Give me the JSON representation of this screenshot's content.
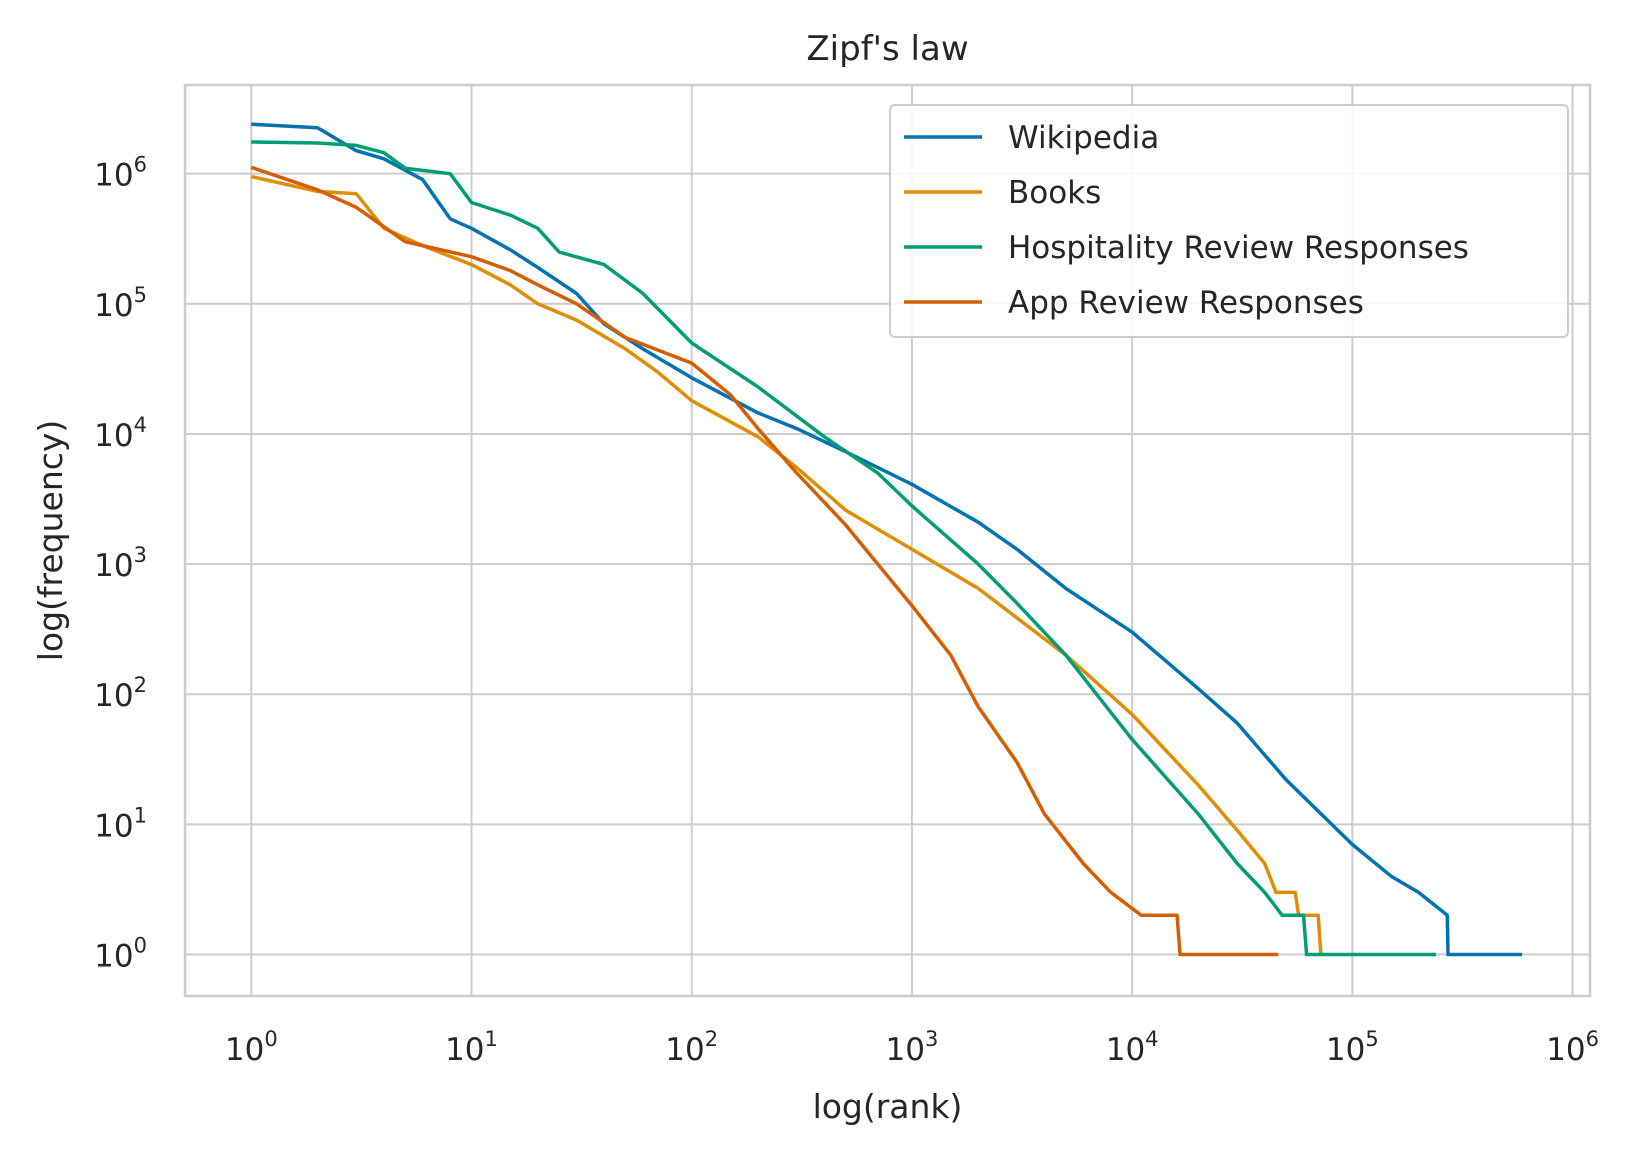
{
  "chart_data": {
    "type": "line",
    "title": "Zipf's law",
    "xlabel": "log(rank)",
    "ylabel": "log(frequency)",
    "x_scale": "log",
    "y_scale": "log",
    "xlim": [
      0.5,
      1200000
    ],
    "ylim": [
      0.48,
      4800000
    ],
    "grid": true,
    "legend_position": "top-right",
    "x_ticks": [
      {
        "base": "10",
        "exp": "0",
        "value": 1
      },
      {
        "base": "10",
        "exp": "1",
        "value": 10
      },
      {
        "base": "10",
        "exp": "2",
        "value": 100
      },
      {
        "base": "10",
        "exp": "3",
        "value": 1000
      },
      {
        "base": "10",
        "exp": "4",
        "value": 10000
      },
      {
        "base": "10",
        "exp": "5",
        "value": 100000
      },
      {
        "base": "10",
        "exp": "6",
        "value": 1000000
      }
    ],
    "y_ticks": [
      {
        "base": "10",
        "exp": "0",
        "value": 1
      },
      {
        "base": "10",
        "exp": "1",
        "value": 10
      },
      {
        "base": "10",
        "exp": "2",
        "value": 100
      },
      {
        "base": "10",
        "exp": "3",
        "value": 1000
      },
      {
        "base": "10",
        "exp": "4",
        "value": 10000
      },
      {
        "base": "10",
        "exp": "5",
        "value": 100000
      },
      {
        "base": "10",
        "exp": "6",
        "value": 1000000
      }
    ],
    "series": [
      {
        "name": "Wikipedia",
        "color": "#0173b2",
        "points": [
          [
            1,
            2400000
          ],
          [
            2,
            2250000
          ],
          [
            3,
            1500000
          ],
          [
            4,
            1300000
          ],
          [
            6,
            900000
          ],
          [
            8,
            450000
          ],
          [
            10,
            380000
          ],
          [
            15,
            260000
          ],
          [
            20,
            190000
          ],
          [
            30,
            120000
          ],
          [
            40,
            70000
          ],
          [
            60,
            45000
          ],
          [
            100,
            27000
          ],
          [
            200,
            14500
          ],
          [
            300,
            11000
          ],
          [
            500,
            7300
          ],
          [
            1000,
            4100
          ],
          [
            2000,
            2100
          ],
          [
            3000,
            1300
          ],
          [
            5000,
            650
          ],
          [
            10000,
            300
          ],
          [
            20000,
            110
          ],
          [
            30000,
            60
          ],
          [
            50000,
            22
          ],
          [
            100000,
            7
          ],
          [
            150000,
            4
          ],
          [
            200000,
            3
          ],
          [
            270000,
            2
          ],
          [
            272000,
            1
          ],
          [
            590000,
            1
          ]
        ]
      },
      {
        "name": "Books",
        "color": "#de8f05",
        "points": [
          [
            1,
            950000
          ],
          [
            2,
            730000
          ],
          [
            3,
            700000
          ],
          [
            4,
            380000
          ],
          [
            6,
            280000
          ],
          [
            10,
            200000
          ],
          [
            15,
            140000
          ],
          [
            20,
            100000
          ],
          [
            30,
            75000
          ],
          [
            50,
            45000
          ],
          [
            70,
            30000
          ],
          [
            100,
            18000
          ],
          [
            200,
            9500
          ],
          [
            300,
            5500
          ],
          [
            500,
            2600
          ],
          [
            1000,
            1300
          ],
          [
            2000,
            650
          ],
          [
            5000,
            200
          ],
          [
            10000,
            70
          ],
          [
            20000,
            20
          ],
          [
            30000,
            9
          ],
          [
            40000,
            5
          ],
          [
            45000,
            3
          ],
          [
            55000,
            3
          ],
          [
            57000,
            2
          ],
          [
            70000,
            2
          ],
          [
            72000,
            1
          ]
        ]
      },
      {
        "name": "Hospitality Review Responses",
        "color": "#029e73",
        "points": [
          [
            1,
            1750000
          ],
          [
            2,
            1720000
          ],
          [
            3,
            1650000
          ],
          [
            4,
            1450000
          ],
          [
            5,
            1100000
          ],
          [
            8,
            1000000
          ],
          [
            10,
            600000
          ],
          [
            15,
            480000
          ],
          [
            20,
            380000
          ],
          [
            25,
            250000
          ],
          [
            40,
            200000
          ],
          [
            60,
            120000
          ],
          [
            100,
            50000
          ],
          [
            200,
            23000
          ],
          [
            400,
            9500
          ],
          [
            700,
            5000
          ],
          [
            1000,
            2800
          ],
          [
            2000,
            1000
          ],
          [
            3000,
            500
          ],
          [
            5000,
            200
          ],
          [
            10000,
            45
          ],
          [
            20000,
            12
          ],
          [
            30000,
            5
          ],
          [
            40000,
            3
          ],
          [
            48000,
            2
          ],
          [
            60000,
            2
          ],
          [
            62000,
            1
          ],
          [
            240000,
            1
          ]
        ]
      },
      {
        "name": "App Review Responses",
        "color": "#d55e00",
        "points": [
          [
            1,
            1120000
          ],
          [
            2,
            750000
          ],
          [
            3,
            550000
          ],
          [
            5,
            300000
          ],
          [
            10,
            230000
          ],
          [
            15,
            180000
          ],
          [
            20,
            140000
          ],
          [
            30,
            100000
          ],
          [
            50,
            55000
          ],
          [
            100,
            35000
          ],
          [
            150,
            20000
          ],
          [
            200,
            11000
          ],
          [
            300,
            5000
          ],
          [
            500,
            2000
          ],
          [
            700,
            1000
          ],
          [
            1000,
            480
          ],
          [
            1500,
            200
          ],
          [
            2000,
            80
          ],
          [
            3000,
            30
          ],
          [
            4000,
            12
          ],
          [
            6000,
            5
          ],
          [
            8000,
            3
          ],
          [
            11000,
            2
          ],
          [
            16000,
            2
          ],
          [
            16500,
            1
          ],
          [
            46000,
            1
          ]
        ]
      }
    ]
  }
}
